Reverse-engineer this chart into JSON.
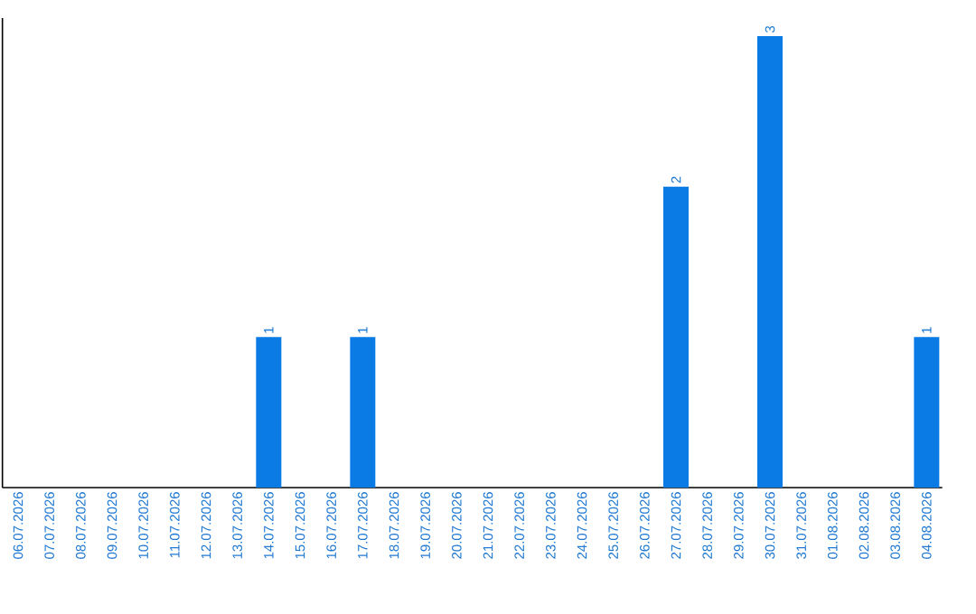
{
  "chart_data": {
    "type": "bar",
    "categories": [
      "06.07.2026",
      "07.07.2026",
      "08.07.2026",
      "09.07.2026",
      "10.07.2026",
      "11.07.2026",
      "12.07.2026",
      "13.07.2026",
      "14.07.2026",
      "15.07.2026",
      "16.07.2026",
      "17.07.2026",
      "18.07.2026",
      "19.07.2026",
      "20.07.2026",
      "21.07.2026",
      "22.07.2026",
      "23.07.2026",
      "24.07.2026",
      "25.07.2026",
      "26.07.2026",
      "27.07.2026",
      "28.07.2026",
      "29.07.2026",
      "30.07.2026",
      "31.07.2026",
      "01.08.2026",
      "02.08.2026",
      "03.08.2026",
      "04.08.2026"
    ],
    "values": [
      0,
      0,
      0,
      0,
      0,
      0,
      0,
      0,
      1,
      0,
      0,
      1,
      0,
      0,
      0,
      0,
      0,
      0,
      0,
      0,
      0,
      2,
      0,
      0,
      3,
      0,
      0,
      0,
      0,
      1
    ],
    "value_labels": [
      null,
      null,
      null,
      null,
      null,
      null,
      null,
      null,
      "1",
      null,
      null,
      "1",
      null,
      null,
      null,
      null,
      null,
      null,
      null,
      null,
      null,
      "2",
      null,
      null,
      "3",
      null,
      null,
      null,
      null,
      "1"
    ],
    "color": "#0a7be5"
  }
}
